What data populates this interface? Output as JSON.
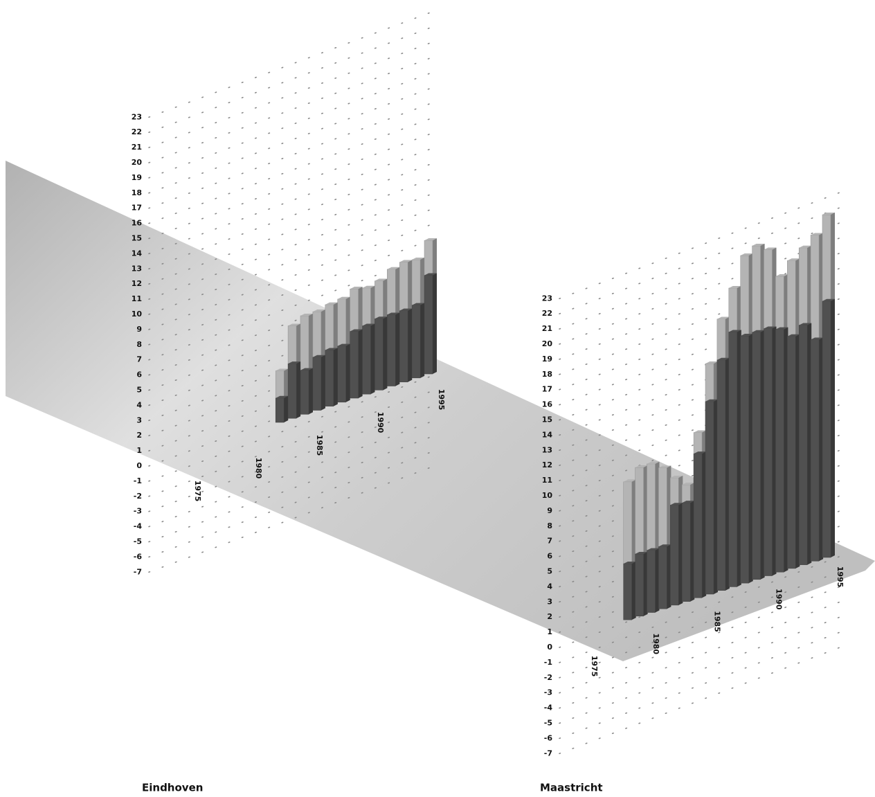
{
  "chart_data": [
    {
      "type": "bar",
      "title": "Eindhoven",
      "x": [
        1983,
        1984,
        1985,
        1986,
        1987,
        1988,
        1989,
        1990,
        1991,
        1992,
        1993,
        1994,
        1995
      ],
      "series": [
        {
          "color": "#b4b4b4",
          "values": [
            3.4,
            6.1,
            6.5,
            6.5,
            6.7,
            6.8,
            7.2,
            7.0,
            7.2,
            7.7,
            7.9,
            7.8,
            8.8
          ]
        },
        {
          "color": "#505050",
          "values": [
            1.6,
            3.6,
            2.9,
            3.5,
            3.7,
            3.7,
            4.4,
            4.5,
            4.7,
            4.7,
            4.7,
            4.8,
            6.5
          ]
        }
      ],
      "xlim": [
        1975,
        1995
      ],
      "xticks": [
        1975,
        1980,
        1985,
        1990,
        1995
      ],
      "ylim": [
        -7,
        23
      ],
      "yticks": [
        -7,
        -6,
        -5,
        -4,
        -3,
        -2,
        -1,
        0,
        1,
        2,
        3,
        4,
        5,
        6,
        7,
        8,
        9,
        10,
        11,
        12,
        13,
        14,
        15,
        16,
        17,
        18,
        19,
        20,
        21,
        22,
        23
      ],
      "grid": true
    },
    {
      "type": "bar",
      "title": "Maastricht",
      "x": [
        1978,
        1979,
        1980,
        1981,
        1982,
        1983,
        1984,
        1985,
        1986,
        1987,
        1988,
        1989,
        1990,
        1991,
        1992,
        1993,
        1994,
        1995
      ],
      "series": [
        {
          "color": "#b4b4b4",
          "values": [
            9.1,
            9.8,
            9.8,
            9.3,
            8.4,
            7.7,
            10.9,
            15.2,
            17.9,
            19.7,
            21.6,
            22.0,
            21.5,
            19.5,
            20.3,
            20.9,
            21.5,
            22.6
          ]
        },
        {
          "color": "#505050",
          "values": [
            3.7,
            4.1,
            4.1,
            4.1,
            6.6,
            6.5,
            9.5,
            12.7,
            15.2,
            16.8,
            16.3,
            16.3,
            16.3,
            16.0,
            15.3,
            15.8,
            14.6,
            16.9
          ]
        }
      ],
      "xlim": [
        1975,
        1995
      ],
      "xticks": [
        1975,
        1980,
        1985,
        1990,
        1995
      ],
      "ylim": [
        -7,
        23
      ],
      "yticks": [
        -7,
        -6,
        -5,
        -4,
        -3,
        -2,
        -1,
        0,
        1,
        2,
        3,
        4,
        5,
        6,
        7,
        8,
        9,
        10,
        11,
        12,
        13,
        14,
        15,
        16,
        17,
        18,
        19,
        20,
        21,
        22,
        23
      ],
      "grid": true
    }
  ]
}
